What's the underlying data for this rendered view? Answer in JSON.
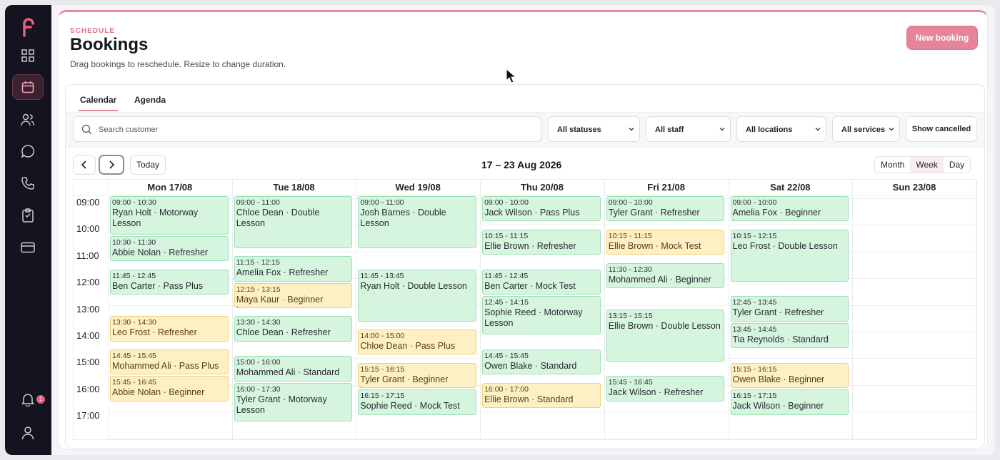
{
  "header": {
    "kicker": "SCHEDULE",
    "title": "Bookings",
    "subtitle": "Drag bookings to reschedule. Resize to change duration.",
    "new_booking": "New booking"
  },
  "sidebar": {
    "icons": [
      "dashboard-icon",
      "calendar-icon",
      "users-icon",
      "chat-icon",
      "phone-icon",
      "clipboard-icon",
      "card-icon"
    ],
    "notification_count": "1",
    "active": "calendar-icon"
  },
  "tabs": [
    {
      "label": "Calendar",
      "active": true
    },
    {
      "label": "Agenda",
      "active": false
    }
  ],
  "filters": {
    "search_placeholder": "Search customer",
    "statuses": "All statuses",
    "staff": "All staff",
    "locations": "All locations",
    "services": "All services",
    "show_cancelled": "Show cancelled"
  },
  "nav": {
    "today": "Today",
    "range": "17 – 23 Aug 2026"
  },
  "views": [
    {
      "label": "Month",
      "active": false
    },
    {
      "label": "Week",
      "active": true
    },
    {
      "label": "Day",
      "active": false
    }
  ],
  "colors": {
    "green": "#d5f5df",
    "yellow": "#fdf0c2",
    "accent": "#e8849a"
  },
  "calendar": {
    "days": [
      "Mon 17/08",
      "Tue 18/08",
      "Wed 19/08",
      "Thu 20/08",
      "Fri 21/08",
      "Sat 22/08",
      "Sun 23/08"
    ],
    "hours": [
      "09:00",
      "10:00",
      "11:00",
      "12:00",
      "13:00",
      "14:00",
      "15:00",
      "16:00",
      "17:00"
    ],
    "events": [
      {
        "day": 0,
        "time": "09:00 - 10:30",
        "name": "Ryan Holt · Motorway Lesson",
        "status": "green"
      },
      {
        "day": 0,
        "time": "10:30 - 11:30",
        "name": "Abbie Nolan · Refresher",
        "status": "green"
      },
      {
        "day": 0,
        "time": "11:45 - 12:45",
        "name": "Ben Carter · Pass Plus",
        "status": "green"
      },
      {
        "day": 0,
        "time": "13:30 - 14:30",
        "name": "Leo Frost · Refresher",
        "status": "yellow"
      },
      {
        "day": 0,
        "time": "14:45 - 15:45",
        "name": "Mohammed Ali · Pass Plus",
        "status": "yellow"
      },
      {
        "day": 0,
        "time": "15:45 - 16:45",
        "name": "Abbie Nolan · Beginner",
        "status": "yellow"
      },
      {
        "day": 1,
        "time": "09:00 - 11:00",
        "name": "Chloe Dean · Double Lesson",
        "status": "green"
      },
      {
        "day": 1,
        "time": "11:15 - 12:15",
        "name": "Amelia Fox · Refresher",
        "status": "green"
      },
      {
        "day": 1,
        "time": "12:15 - 13:15",
        "name": "Maya Kaur · Beginner Lesson",
        "status": "yellow"
      },
      {
        "day": 1,
        "time": "13:30 - 14:30",
        "name": "Chloe Dean · Refresher",
        "status": "green"
      },
      {
        "day": 1,
        "time": "15:00 - 16:00",
        "name": "Mohammed Ali · Standard",
        "status": "green"
      },
      {
        "day": 1,
        "time": "16:00 - 17:30",
        "name": "Tyler Grant · Motorway Lesson",
        "status": "green"
      },
      {
        "day": 2,
        "time": "09:00 - 11:00",
        "name": "Josh Barnes · Double Lesson",
        "status": "green"
      },
      {
        "day": 2,
        "time": "11:45 - 13:45",
        "name": "Ryan Holt · Double Lesson",
        "status": "green"
      },
      {
        "day": 2,
        "time": "14:00 - 15:00",
        "name": "Chloe Dean · Pass Plus",
        "status": "yellow"
      },
      {
        "day": 2,
        "time": "15:15 - 16:15",
        "name": "Tyler Grant · Beginner Lesson",
        "status": "yellow"
      },
      {
        "day": 2,
        "time": "16:15 - 17:15",
        "name": "Sophie Reed · Mock Test",
        "status": "green"
      },
      {
        "day": 3,
        "time": "09:00 - 10:00",
        "name": "Jack Wilson · Pass Plus",
        "status": "green"
      },
      {
        "day": 3,
        "time": "10:15 - 11:15",
        "name": "Ellie Brown · Refresher",
        "status": "green"
      },
      {
        "day": 3,
        "time": "11:45 - 12:45",
        "name": "Ben Carter · Mock Test",
        "status": "green"
      },
      {
        "day": 3,
        "time": "12:45 - 14:15",
        "name": "Sophie Reed · Motorway Lesson",
        "status": "green"
      },
      {
        "day": 3,
        "time": "14:45 - 15:45",
        "name": "Owen Blake · Standard",
        "status": "green"
      },
      {
        "day": 3,
        "time": "16:00 - 17:00",
        "name": "Ellie Brown · Standard",
        "status": "yellow"
      },
      {
        "day": 4,
        "time": "09:00 - 10:00",
        "name": "Tyler Grant · Refresher",
        "status": "green"
      },
      {
        "day": 4,
        "time": "10:15 - 11:15",
        "name": "Ellie Brown · Mock Test",
        "status": "yellow"
      },
      {
        "day": 4,
        "time": "11:30 - 12:30",
        "name": "Mohammed Ali · Beginner",
        "status": "green"
      },
      {
        "day": 4,
        "time": "13:15 - 15:15",
        "name": "Ellie Brown · Double Lesson",
        "status": "green"
      },
      {
        "day": 4,
        "time": "15:45 - 16:45",
        "name": "Jack Wilson · Refresher",
        "status": "green"
      },
      {
        "day": 5,
        "time": "09:00 - 10:00",
        "name": "Amelia Fox · Beginner Lesson",
        "status": "green"
      },
      {
        "day": 5,
        "time": "10:15 - 12:15",
        "name": "Leo Frost · Double Lesson",
        "status": "green"
      },
      {
        "day": 5,
        "time": "12:45 - 13:45",
        "name": "Tyler Grant · Refresher",
        "status": "green"
      },
      {
        "day": 5,
        "time": "13:45 - 14:45",
        "name": "Tia Reynolds · Standard",
        "status": "green"
      },
      {
        "day": 5,
        "time": "15:15 - 16:15",
        "name": "Owen Blake · Beginner",
        "status": "yellow"
      },
      {
        "day": 5,
        "time": "16:15 - 17:15",
        "name": "Jack Wilson · Beginner",
        "status": "green"
      }
    ]
  }
}
